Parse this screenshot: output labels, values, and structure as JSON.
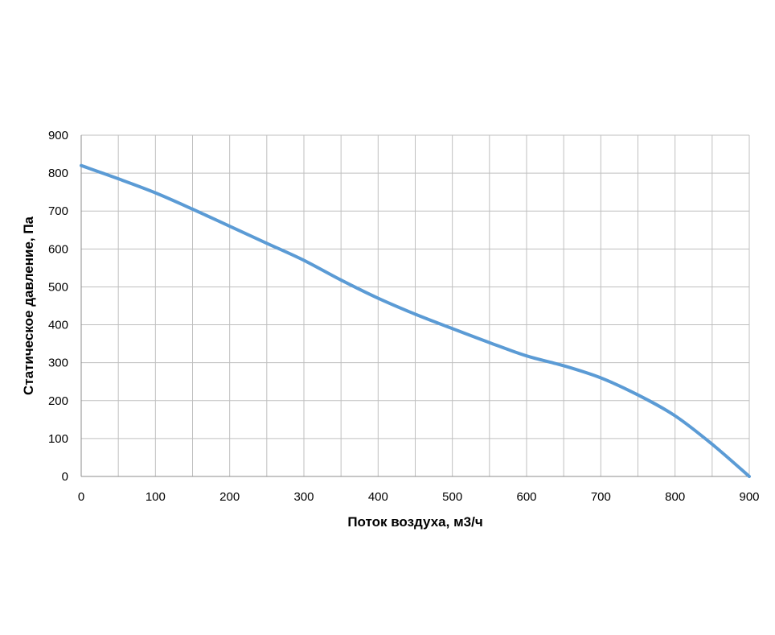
{
  "chart_data": {
    "type": "line",
    "title": "",
    "xlabel": "Поток воздуха, м3/ч",
    "ylabel": "Статическое давление, Па",
    "xlim": [
      0,
      900
    ],
    "ylim": [
      0,
      900
    ],
    "x_ticks": [
      0,
      100,
      200,
      300,
      400,
      500,
      600,
      700,
      800,
      900
    ],
    "y_ticks": [
      0,
      100,
      200,
      300,
      400,
      500,
      600,
      700,
      800,
      900
    ],
    "x_tick_labels": [
      "0",
      "100",
      "200",
      "300",
      "400",
      "500",
      "600",
      "700",
      "800",
      "900"
    ],
    "y_tick_labels": [
      "0",
      "100",
      "200",
      "300",
      "400",
      "500",
      "600",
      "700",
      "800",
      "900"
    ],
    "x_minor_step": 50,
    "grid": true,
    "legend": "none",
    "series": [
      {
        "color": "#5b9bd5",
        "x": [
          0,
          50,
          100,
          150,
          200,
          250,
          300,
          350,
          400,
          450,
          500,
          550,
          600,
          650,
          700,
          750,
          800,
          850,
          900
        ],
        "y": [
          820,
          785,
          748,
          705,
          660,
          615,
          570,
          518,
          470,
          428,
          390,
          353,
          318,
          292,
          260,
          215,
          160,
          85,
          0
        ]
      }
    ]
  }
}
